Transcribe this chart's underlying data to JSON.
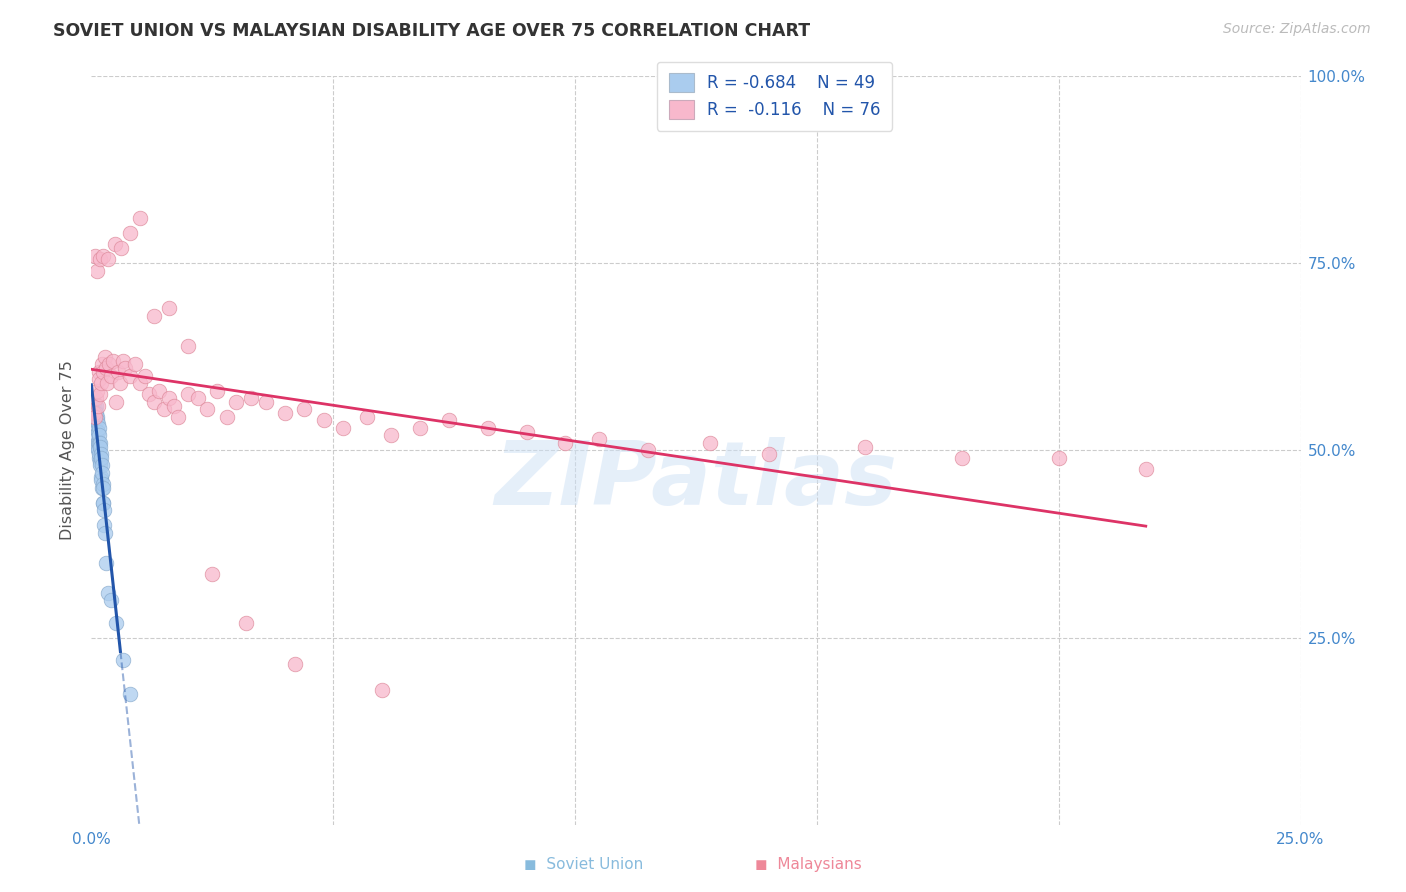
{
  "title": "SOVIET UNION VS MALAYSIAN DISABILITY AGE OVER 75 CORRELATION CHART",
  "source": "Source: ZipAtlas.com",
  "ylabel": "Disability Age Over 75",
  "xlim": [
    0.0,
    0.25
  ],
  "ylim": [
    0.0,
    1.0
  ],
  "soviet_color": "#aaccee",
  "soviet_edge": "#88aacc",
  "malay_color": "#f8b8cc",
  "malay_edge": "#dd8899",
  "soviet_line_color": "#2255aa",
  "malay_line_color": "#dd3366",
  "soviet_R": -0.684,
  "soviet_N": 49,
  "malay_R": -0.116,
  "malay_N": 76,
  "watermark": "ZIPatlas",
  "soviet_points_x": [
    0.0002,
    0.0003,
    0.0004,
    0.0005,
    0.0005,
    0.0006,
    0.0007,
    0.0008,
    0.0008,
    0.0009,
    0.001,
    0.001,
    0.0011,
    0.0011,
    0.0012,
    0.0012,
    0.0013,
    0.0013,
    0.0014,
    0.0014,
    0.0015,
    0.0015,
    0.0015,
    0.0016,
    0.0016,
    0.0017,
    0.0017,
    0.0018,
    0.0018,
    0.0019,
    0.0019,
    0.002,
    0.002,
    0.0021,
    0.0021,
    0.0022,
    0.0023,
    0.0023,
    0.0024,
    0.0025,
    0.0026,
    0.0027,
    0.0028,
    0.003,
    0.0035,
    0.004,
    0.005,
    0.0065,
    0.008
  ],
  "soviet_points_y": [
    0.55,
    0.56,
    0.57,
    0.555,
    0.54,
    0.565,
    0.545,
    0.555,
    0.53,
    0.56,
    0.55,
    0.52,
    0.545,
    0.51,
    0.54,
    0.505,
    0.535,
    0.51,
    0.525,
    0.5,
    0.53,
    0.51,
    0.49,
    0.52,
    0.495,
    0.51,
    0.485,
    0.505,
    0.48,
    0.495,
    0.465,
    0.49,
    0.46,
    0.48,
    0.45,
    0.47,
    0.455,
    0.43,
    0.45,
    0.43,
    0.42,
    0.4,
    0.39,
    0.35,
    0.31,
    0.3,
    0.27,
    0.22,
    0.175
  ],
  "malay_points_x": [
    0.0005,
    0.0008,
    0.001,
    0.0012,
    0.0014,
    0.0015,
    0.0016,
    0.0018,
    0.002,
    0.0022,
    0.0025,
    0.0028,
    0.003,
    0.0033,
    0.0036,
    0.004,
    0.0045,
    0.005,
    0.0055,
    0.006,
    0.0065,
    0.007,
    0.008,
    0.009,
    0.01,
    0.011,
    0.012,
    0.013,
    0.014,
    0.015,
    0.016,
    0.017,
    0.018,
    0.02,
    0.022,
    0.024,
    0.026,
    0.028,
    0.03,
    0.033,
    0.036,
    0.04,
    0.044,
    0.048,
    0.052,
    0.057,
    0.062,
    0.068,
    0.074,
    0.082,
    0.09,
    0.098,
    0.105,
    0.115,
    0.128,
    0.14,
    0.16,
    0.18,
    0.2,
    0.218,
    0.0008,
    0.0012,
    0.0018,
    0.0025,
    0.0035,
    0.0048,
    0.0062,
    0.008,
    0.01,
    0.013,
    0.016,
    0.02,
    0.025,
    0.032,
    0.042,
    0.06
  ],
  "malay_points_y": [
    0.55,
    0.545,
    0.57,
    0.58,
    0.56,
    0.605,
    0.595,
    0.575,
    0.59,
    0.615,
    0.605,
    0.625,
    0.61,
    0.59,
    0.615,
    0.6,
    0.62,
    0.565,
    0.605,
    0.59,
    0.62,
    0.61,
    0.6,
    0.615,
    0.59,
    0.6,
    0.575,
    0.565,
    0.58,
    0.555,
    0.57,
    0.56,
    0.545,
    0.575,
    0.57,
    0.555,
    0.58,
    0.545,
    0.565,
    0.57,
    0.565,
    0.55,
    0.555,
    0.54,
    0.53,
    0.545,
    0.52,
    0.53,
    0.54,
    0.53,
    0.525,
    0.51,
    0.515,
    0.5,
    0.51,
    0.495,
    0.505,
    0.49,
    0.49,
    0.475,
    0.76,
    0.74,
    0.755,
    0.76,
    0.755,
    0.775,
    0.77,
    0.79,
    0.81,
    0.68,
    0.69,
    0.64,
    0.335,
    0.27,
    0.215,
    0.18
  ]
}
